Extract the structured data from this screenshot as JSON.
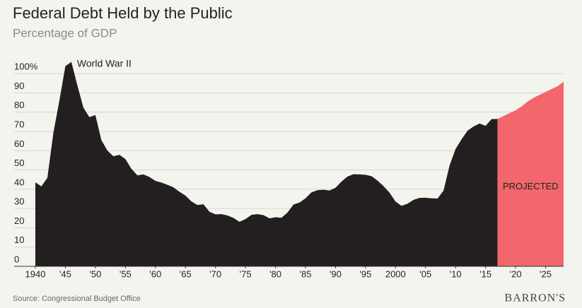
{
  "chart_data": {
    "type": "area",
    "title": "Federal Debt Held by the Public",
    "subtitle": "Percentage of GDP",
    "source": "Source: Congressional Budget Office",
    "logo": "BARRON'S",
    "annotations": [
      "World War II",
      "PROJECTED"
    ],
    "x": [
      1940,
      1941,
      1942,
      1943,
      1944,
      1945,
      1946,
      1947,
      1948,
      1949,
      1950,
      1951,
      1952,
      1953,
      1954,
      1955,
      1956,
      1957,
      1958,
      1959,
      1960,
      1961,
      1962,
      1963,
      1964,
      1965,
      1966,
      1967,
      1968,
      1969,
      1970,
      1971,
      1972,
      1973,
      1974,
      1975,
      1976,
      1977,
      1978,
      1979,
      1980,
      1981,
      1982,
      1983,
      1984,
      1985,
      1986,
      1987,
      1988,
      1989,
      1990,
      1991,
      1992,
      1993,
      1994,
      1995,
      1996,
      1997,
      1998,
      1999,
      2000,
      2001,
      2002,
      2003,
      2004,
      2005,
      2006,
      2007,
      2008,
      2009,
      2010,
      2011,
      2012,
      2013,
      2014,
      2015,
      2016,
      2017,
      2018,
      2019,
      2020,
      2021,
      2022,
      2023,
      2024,
      2025,
      2026,
      2027,
      2028
    ],
    "series": [
      {
        "color": "#231f20",
        "values": [
          43.6,
          41.5,
          45.9,
          69.2,
          86.0,
          103.9,
          106.1,
          93.9,
          82.4,
          77.4,
          78.5,
          65.5,
          60.1,
          57.1,
          57.9,
          55.7,
          50.6,
          47.2,
          47.7,
          46.4,
          44.3,
          43.5,
          42.3,
          41.0,
          38.7,
          36.7,
          33.7,
          31.8,
          32.2,
          28.3,
          27.0,
          27.1,
          26.4,
          25.1,
          23.1,
          24.5,
          26.7,
          27.1,
          26.6,
          24.9,
          25.5,
          25.2,
          27.9,
          32.1,
          33.1,
          35.3,
          38.4,
          39.5,
          39.8,
          39.3,
          40.8,
          44.0,
          46.6,
          47.8,
          47.7,
          47.5,
          46.8,
          44.5,
          41.6,
          38.2,
          33.6,
          31.4,
          32.5,
          34.5,
          35.5,
          35.6,
          35.3,
          35.2,
          39.3,
          52.3,
          60.9,
          65.9,
          70.4,
          72.6,
          74.1,
          72.9,
          76.4,
          76.5,
          null,
          null,
          null,
          null,
          null,
          null,
          null,
          null,
          null,
          null,
          null
        ]
      },
      {
        "color": "#f2676b",
        "values": [
          null,
          null,
          null,
          null,
          null,
          null,
          null,
          null,
          null,
          null,
          null,
          null,
          null,
          null,
          null,
          null,
          null,
          null,
          null,
          null,
          null,
          null,
          null,
          null,
          null,
          null,
          null,
          null,
          null,
          null,
          null,
          null,
          null,
          null,
          null,
          null,
          null,
          null,
          null,
          null,
          null,
          null,
          null,
          null,
          null,
          null,
          null,
          null,
          null,
          null,
          null,
          null,
          null,
          null,
          null,
          null,
          null,
          null,
          null,
          null,
          null,
          null,
          null,
          null,
          null,
          null,
          null,
          null,
          null,
          null,
          null,
          null,
          null,
          null,
          null,
          null,
          null,
          76.5,
          78.0,
          79.5,
          81.0,
          83.0,
          85.5,
          87.5,
          89.0,
          90.5,
          92.0,
          93.5,
          95.8
        ]
      }
    ],
    "xlim": [
      1940,
      2028
    ],
    "xticks": [
      1940,
      {
        "value": 1945,
        "label": "'45"
      },
      {
        "value": 1950,
        "label": "'50"
      },
      {
        "value": 1955,
        "label": "'55"
      },
      {
        "value": 1960,
        "label": "'60"
      },
      {
        "value": 1965,
        "label": "'65"
      },
      {
        "value": 1970,
        "label": "'70"
      },
      {
        "value": 1975,
        "label": "'75"
      },
      {
        "value": 1980,
        "label": "'80"
      },
      {
        "value": 1985,
        "label": "'85"
      },
      {
        "value": 1990,
        "label": "'90"
      },
      {
        "value": 1995,
        "label": "'95"
      },
      2000,
      {
        "value": 2005,
        "label": "'05"
      },
      {
        "value": 2010,
        "label": "'10"
      },
      {
        "value": 2015,
        "label": "'15"
      },
      {
        "value": 2020,
        "label": "'20"
      },
      {
        "value": 2025,
        "label": "'25"
      }
    ],
    "ylim": [
      0,
      106.1
    ],
    "yticks": [
      0,
      10,
      20,
      30,
      40,
      50,
      60,
      70,
      80,
      90,
      {
        "value": 100,
        "label": "100%"
      }
    ],
    "grid": true
  }
}
